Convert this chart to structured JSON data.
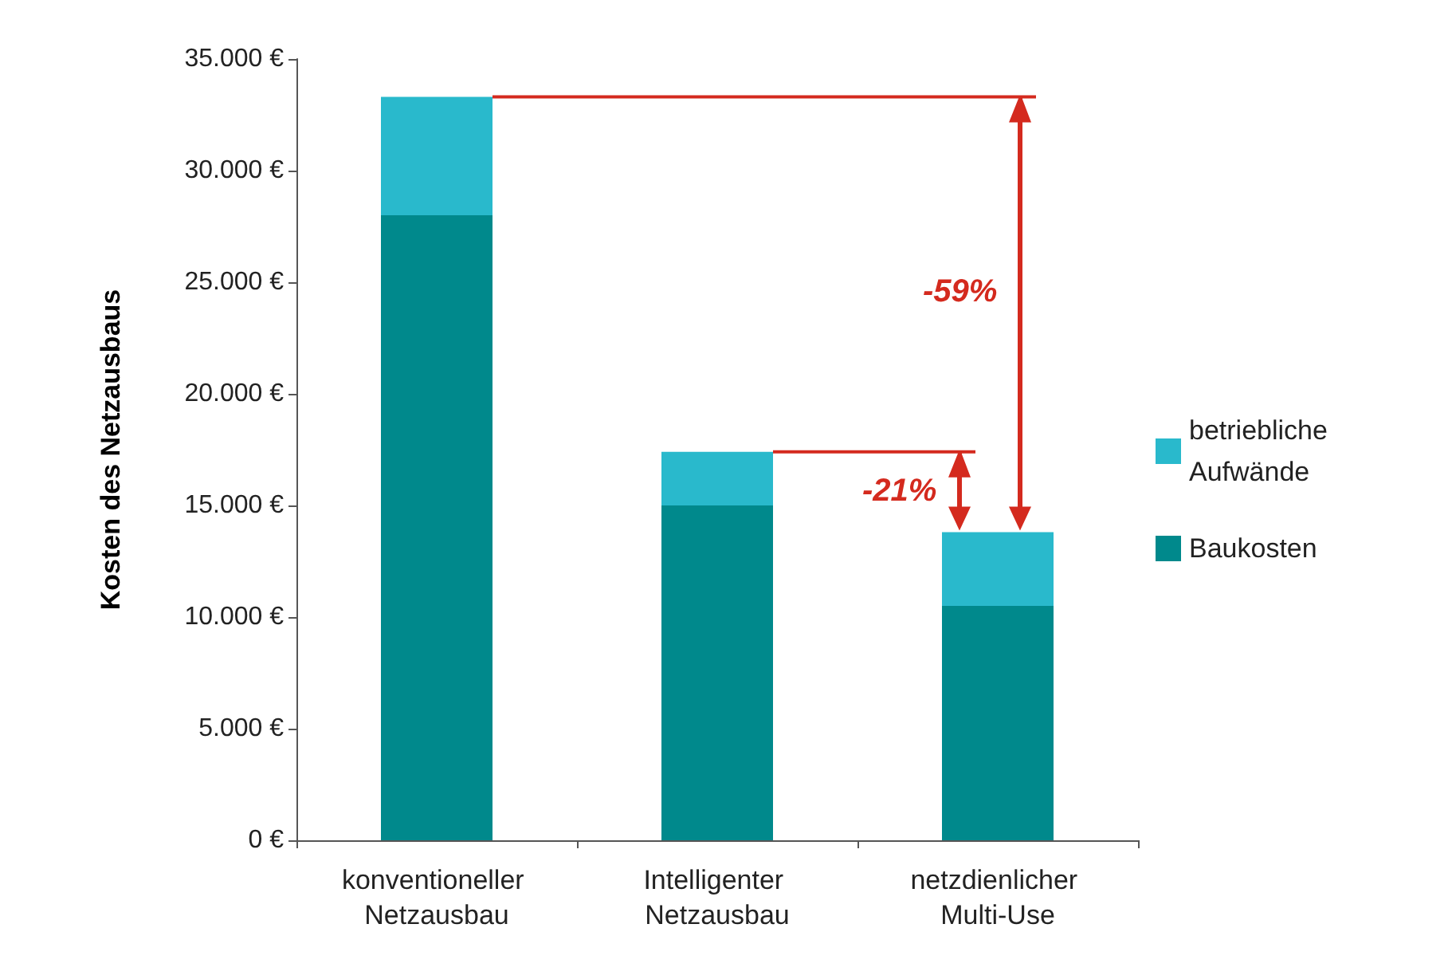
{
  "chart_data": {
    "type": "bar",
    "stacked": true,
    "ylabel": "Kosten des Netzausbaus",
    "categories": [
      "konventioneller Netzausbau",
      "Intelligenter Netzausbau",
      "netzdienlicher Multi-Use"
    ],
    "series": [
      {
        "name": "Baukosten",
        "color": "#00898c",
        "values": [
          28000,
          15000,
          10500
        ]
      },
      {
        "name": "betriebliche Aufwände",
        "color": "#29b9cc",
        "values": [
          5300,
          2400,
          3300
        ]
      }
    ],
    "ylim": [
      0,
      35000
    ],
    "yticks": [
      {
        "value": 0,
        "label": "0 €"
      },
      {
        "value": 5000,
        "label": "5.000 €"
      },
      {
        "value": 10000,
        "label": "10.000 €"
      },
      {
        "value": 15000,
        "label": "15.000 €"
      },
      {
        "value": 20000,
        "label": "20.000 €"
      },
      {
        "value": 25000,
        "label": "25.000 €"
      },
      {
        "value": 30000,
        "label": "30.000 €"
      },
      {
        "value": 35000,
        "label": "35.000 €"
      }
    ],
    "grid": false,
    "legend": "right",
    "annotations": [
      "-59%",
      "-21%"
    ]
  }
}
